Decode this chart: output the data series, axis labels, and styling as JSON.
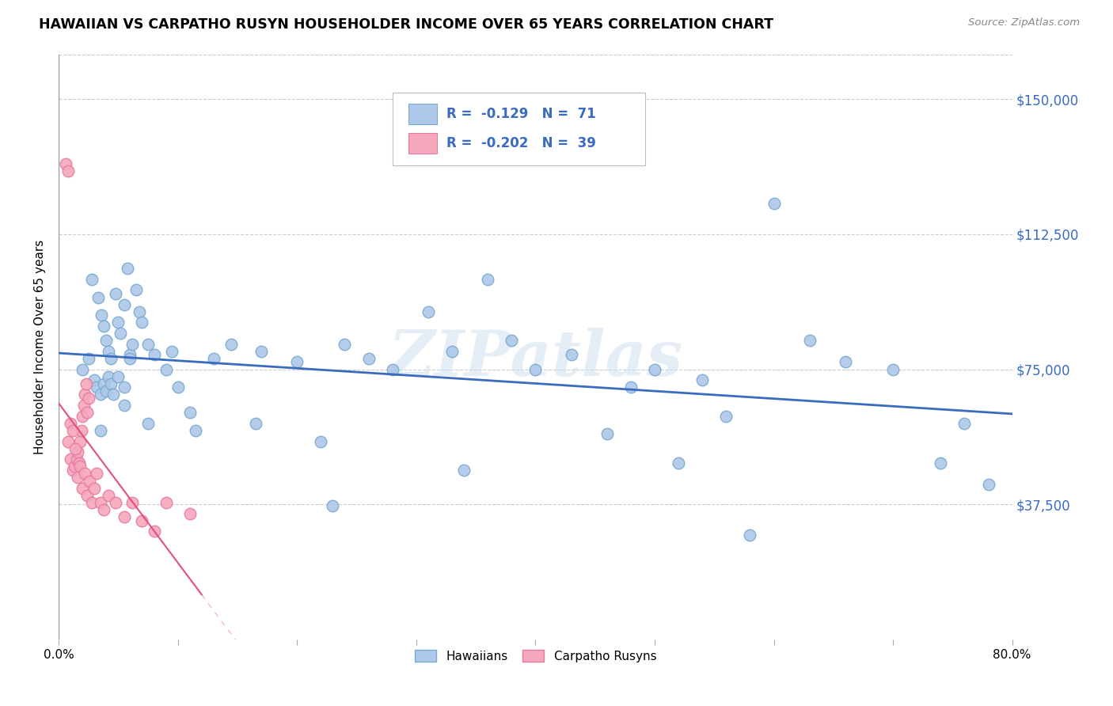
{
  "title": "HAWAIIAN VS CARPATHO RUSYN HOUSEHOLDER INCOME OVER 65 YEARS CORRELATION CHART",
  "source": "Source: ZipAtlas.com",
  "ylabel": "Householder Income Over 65 years",
  "xlim": [
    0.0,
    0.8
  ],
  "ylim": [
    0,
    162500
  ],
  "yticks": [
    37500,
    75000,
    112500,
    150000
  ],
  "ytick_labels": [
    "$37,500",
    "$75,000",
    "$112,500",
    "$150,000"
  ],
  "xticks": [
    0.0,
    0.1,
    0.2,
    0.3,
    0.4,
    0.5,
    0.6,
    0.7,
    0.8
  ],
  "xtick_labels": [
    "0.0%",
    "",
    "",
    "",
    "",
    "",
    "",
    "",
    "80.0%"
  ],
  "hawaii_color": "#adc8e8",
  "carpatho_color": "#f5a8bc",
  "hawaii_edge_color": "#7aaad0",
  "carpatho_edge_color": "#e87aa0",
  "trend_hawaii_color": "#3a6bbf",
  "trend_carpatho_color": "#e05080",
  "legend_hawaii_R": "-0.129",
  "legend_hawaii_N": "71",
  "legend_carpatho_R": "-0.202",
  "legend_carpatho_N": "39",
  "watermark": "ZIPatlas",
  "hawaii_x": [
    0.02,
    0.025,
    0.03,
    0.032,
    0.035,
    0.038,
    0.04,
    0.042,
    0.044,
    0.046,
    0.048,
    0.05,
    0.052,
    0.055,
    0.058,
    0.06,
    0.062,
    0.065,
    0.068,
    0.07,
    0.028,
    0.033,
    0.036,
    0.038,
    0.04,
    0.042,
    0.044,
    0.05,
    0.055,
    0.06,
    0.075,
    0.08,
    0.09,
    0.1,
    0.11,
    0.13,
    0.145,
    0.17,
    0.2,
    0.22,
    0.24,
    0.26,
    0.28,
    0.31,
    0.33,
    0.36,
    0.38,
    0.4,
    0.43,
    0.46,
    0.48,
    0.5,
    0.52,
    0.54,
    0.56,
    0.6,
    0.63,
    0.66,
    0.7,
    0.74,
    0.76,
    0.78,
    0.035,
    0.055,
    0.075,
    0.095,
    0.115,
    0.165,
    0.23,
    0.34,
    0.58
  ],
  "hawaii_y": [
    75000,
    78000,
    72000,
    70000,
    68000,
    71000,
    69000,
    73000,
    71000,
    68000,
    96000,
    88000,
    85000,
    93000,
    103000,
    79000,
    82000,
    97000,
    91000,
    88000,
    100000,
    95000,
    90000,
    87000,
    83000,
    80000,
    78000,
    73000,
    70000,
    78000,
    82000,
    79000,
    75000,
    70000,
    63000,
    78000,
    82000,
    80000,
    77000,
    55000,
    82000,
    78000,
    75000,
    91000,
    80000,
    100000,
    83000,
    75000,
    79000,
    57000,
    70000,
    75000,
    49000,
    72000,
    62000,
    121000,
    83000,
    77000,
    75000,
    49000,
    60000,
    43000,
    58000,
    65000,
    60000,
    80000,
    58000,
    60000,
    37000,
    47000,
    29000
  ],
  "carpatho_x": [
    0.006,
    0.008,
    0.01,
    0.012,
    0.013,
    0.015,
    0.016,
    0.017,
    0.018,
    0.019,
    0.02,
    0.021,
    0.022,
    0.023,
    0.024,
    0.025,
    0.008,
    0.01,
    0.012,
    0.014,
    0.016,
    0.018,
    0.02,
    0.022,
    0.024,
    0.026,
    0.028,
    0.03,
    0.032,
    0.035,
    0.038,
    0.042,
    0.048,
    0.055,
    0.062,
    0.07,
    0.08,
    0.09,
    0.11
  ],
  "carpatho_y": [
    132000,
    130000,
    50000,
    47000,
    48000,
    50000,
    52000,
    49000,
    55000,
    58000,
    62000,
    65000,
    68000,
    71000,
    63000,
    67000,
    55000,
    60000,
    58000,
    53000,
    45000,
    48000,
    42000,
    46000,
    40000,
    44000,
    38000,
    42000,
    46000,
    38000,
    36000,
    40000,
    38000,
    34000,
    38000,
    33000,
    30000,
    38000,
    35000
  ]
}
